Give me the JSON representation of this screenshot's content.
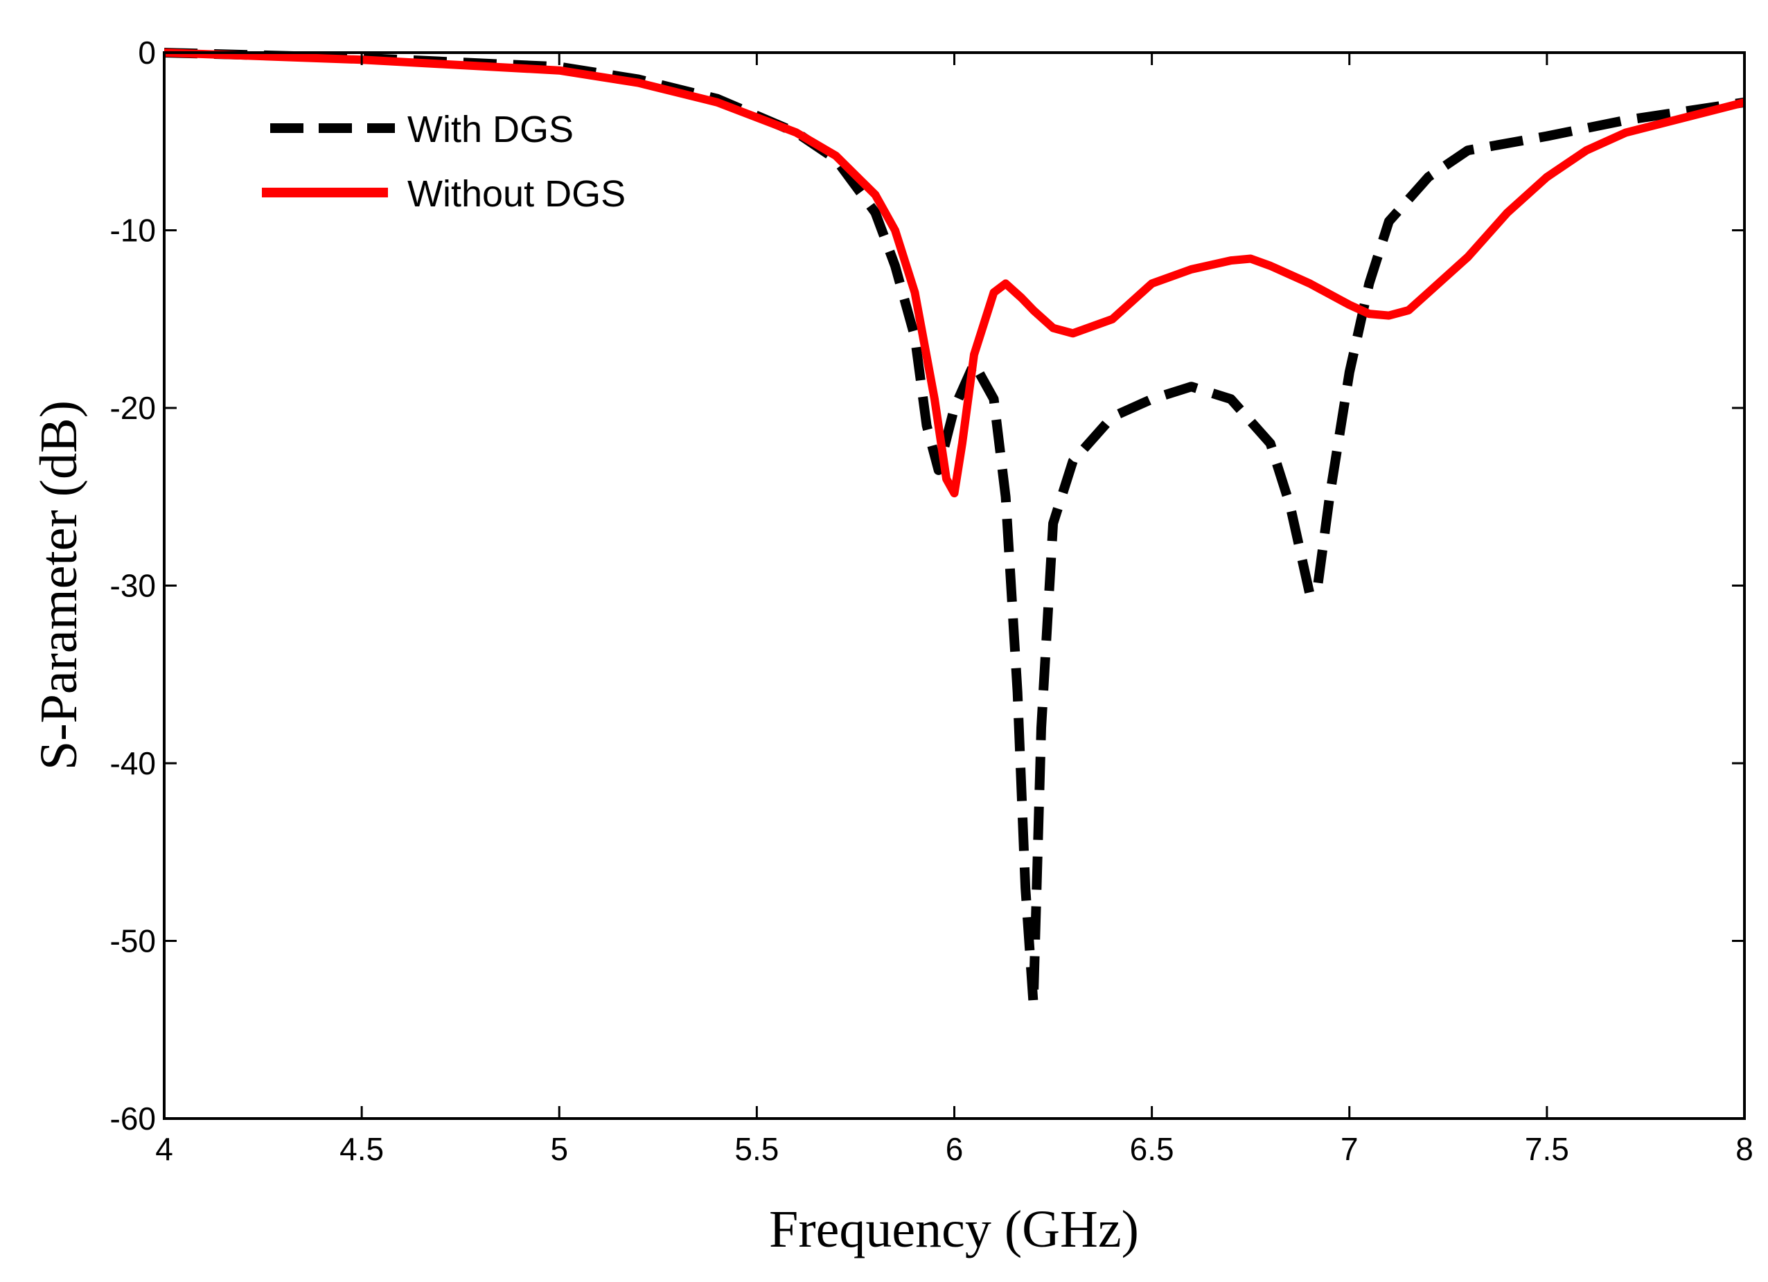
{
  "chart_data": {
    "type": "line",
    "title": "",
    "xlabel": "Frequency (GHz)",
    "ylabel": "S-Parameter (dB)",
    "xlim": [
      4,
      8
    ],
    "ylim": [
      -60,
      0
    ],
    "xticks": [
      4,
      4.5,
      5,
      5.5,
      6,
      6.5,
      7,
      7.5,
      8
    ],
    "xtick_labels": [
      "4",
      "4.5",
      "5",
      "5.5",
      "6",
      "6.5",
      "7",
      "7.5",
      "8"
    ],
    "yticks": [
      0,
      -10,
      -20,
      -30,
      -40,
      -50,
      -60
    ],
    "ytick_labels": [
      "0",
      "-10",
      "-20",
      "-30",
      "-40",
      "-50",
      "-60"
    ],
    "grid": false,
    "legend_position": "top-left",
    "series": [
      {
        "name": "With DGS",
        "color": "#000000",
        "style": "dashed",
        "x": [
          4.0,
          4.5,
          5.0,
          5.2,
          5.4,
          5.6,
          5.7,
          5.8,
          5.85,
          5.9,
          5.93,
          5.96,
          6.0,
          6.05,
          6.1,
          6.13,
          6.16,
          6.18,
          6.2,
          6.22,
          6.25,
          6.3,
          6.4,
          6.5,
          6.6,
          6.7,
          6.8,
          6.85,
          6.88,
          6.9,
          6.92,
          6.95,
          7.0,
          7.05,
          7.1,
          7.2,
          7.3,
          7.5,
          7.7,
          8.0
        ],
        "values": [
          0,
          -0.3,
          -0.8,
          -1.5,
          -2.6,
          -4.5,
          -6.0,
          -9.0,
          -12.0,
          -16.0,
          -21.0,
          -23.5,
          -20.0,
          -17.5,
          -19.5,
          -25.0,
          -36.0,
          -47.0,
          -53.5,
          -38.0,
          -26.5,
          -23.0,
          -20.5,
          -19.5,
          -18.8,
          -19.5,
          -22.0,
          -25.5,
          -28.5,
          -30.5,
          -30.0,
          -25.0,
          -18.0,
          -13.0,
          -9.5,
          -7.0,
          -5.5,
          -4.7,
          -3.8,
          -2.8
        ]
      },
      {
        "name": "Without DGS",
        "color": "#ff0000",
        "style": "solid",
        "x": [
          4.0,
          4.5,
          5.0,
          5.2,
          5.4,
          5.6,
          5.7,
          5.8,
          5.85,
          5.9,
          5.95,
          5.98,
          6.0,
          6.02,
          6.05,
          6.1,
          6.13,
          6.17,
          6.2,
          6.25,
          6.3,
          6.4,
          6.5,
          6.6,
          6.7,
          6.75,
          6.8,
          6.9,
          7.0,
          7.05,
          7.1,
          7.15,
          7.2,
          7.3,
          7.4,
          7.5,
          7.6,
          7.7,
          8.0
        ],
        "values": [
          0,
          -0.4,
          -1.0,
          -1.7,
          -2.8,
          -4.5,
          -5.8,
          -8.0,
          -10.0,
          -13.5,
          -19.5,
          -24.0,
          -24.8,
          -22.0,
          -17.0,
          -13.5,
          -13.0,
          -13.8,
          -14.5,
          -15.5,
          -15.8,
          -15.0,
          -13.0,
          -12.2,
          -11.7,
          -11.6,
          -12.0,
          -13.0,
          -14.2,
          -14.7,
          -14.8,
          -14.5,
          -13.5,
          -11.5,
          -9.0,
          -7.0,
          -5.5,
          -4.5,
          -2.8
        ]
      }
    ]
  }
}
